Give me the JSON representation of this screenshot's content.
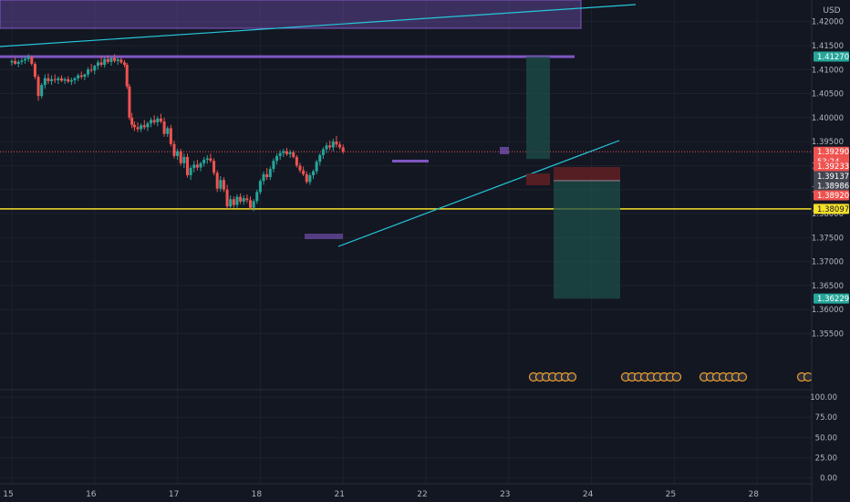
{
  "currency_label": "USD",
  "colors": {
    "background": "#131722",
    "grid": "#1e222d",
    "up": "#26a69a",
    "down": "#ef5350",
    "axis_text": "#b2b5be",
    "trendline": "#26c6da",
    "zone": "#7e57c2",
    "support": "#f5e02a",
    "target_zone": "#1d4d4a",
    "stop_zone": "#5c1f24"
  },
  "chart_data": {
    "type": "candlestick",
    "symbol_currency": "USD",
    "price_axis": {
      "min": 1.3435,
      "max": 1.4245,
      "ticks": [
        "1.42000",
        "1.41500",
        "1.41000",
        "1.40500",
        "1.40000",
        "1.39500",
        "1.39000",
        "1.38500",
        "1.38000",
        "1.37500",
        "1.37000",
        "1.36500",
        "1.36000",
        "1.35500"
      ]
    },
    "time_axis": {
      "labels": [
        {
          "label": "15",
          "x": 0
        },
        {
          "label": "16",
          "x": 1
        },
        {
          "label": "17",
          "x": 2
        },
        {
          "label": "18",
          "x": 3
        },
        {
          "label": "21",
          "x": 4
        },
        {
          "label": "22",
          "x": 5
        },
        {
          "label": "23",
          "x": 6
        },
        {
          "label": "24",
          "x": 7
        },
        {
          "label": "25",
          "x": 8
        },
        {
          "label": "28",
          "x": 9
        }
      ]
    },
    "oscillator_axis": {
      "min": -5,
      "max": 108,
      "ticks": [
        "100.00",
        "75.00",
        "50.00",
        "25.00",
        "0.00"
      ]
    },
    "price_markers": [
      {
        "label": "1.41270",
        "price": 1.4127,
        "color": "#26a69a",
        "text_color": "#ffffff"
      },
      {
        "label": "1.39290",
        "price": 1.3929,
        "color": "#ef5350",
        "text_color": "#ffffff",
        "sub": "53:24"
      },
      {
        "label": "1.39233",
        "price": 1.38985,
        "color": "#ef5350",
        "text_color": "#ffffff"
      },
      {
        "label": "1.39137",
        "price": 1.3878,
        "color": "#434651",
        "text_color": "#ffffff"
      },
      {
        "label": "1.38986",
        "price": 1.3858,
        "color": "#434651",
        "text_color": "#ffffff"
      },
      {
        "label": "1.38920",
        "price": 1.3838,
        "color": "#ef5350",
        "text_color": "#ffffff"
      },
      {
        "label": "1.38097",
        "price": 1.38097,
        "color": "#f5e02a",
        "text_color": "#131722"
      },
      {
        "label": "1.36229",
        "price": 1.36229,
        "color": "#26a69a",
        "text_color": "#ffffff"
      }
    ],
    "levels": {
      "resistance": 1.4127,
      "current": 1.3929,
      "support": 1.38097,
      "target": 1.36229
    },
    "candles": [
      [
        0.0,
        1.4115,
        1.4122,
        1.4108,
        1.4118
      ],
      [
        0.04,
        1.4118,
        1.4125,
        1.411,
        1.4112
      ],
      [
        0.08,
        1.4112,
        1.412,
        1.4105,
        1.4116
      ],
      [
        0.12,
        1.4116,
        1.4124,
        1.411,
        1.4119
      ],
      [
        0.16,
        1.4119,
        1.4128,
        1.4112,
        1.4122
      ],
      [
        0.2,
        1.4122,
        1.4132,
        1.4116,
        1.4126
      ],
      [
        0.24,
        1.4126,
        1.413,
        1.4108,
        1.4112
      ],
      [
        0.28,
        1.4112,
        1.4116,
        1.408,
        1.4085
      ],
      [
        0.32,
        1.4085,
        1.409,
        1.4035,
        1.4045
      ],
      [
        0.36,
        1.4045,
        1.4072,
        1.404,
        1.4068
      ],
      [
        0.4,
        1.4068,
        1.409,
        1.406,
        1.4082
      ],
      [
        0.44,
        1.4082,
        1.4092,
        1.407,
        1.4076
      ],
      [
        0.48,
        1.4076,
        1.4088,
        1.4068,
        1.408
      ],
      [
        0.52,
        1.408,
        1.409,
        1.4072,
        1.4078
      ],
      [
        0.56,
        1.4078,
        1.4086,
        1.407,
        1.4082
      ],
      [
        0.6,
        1.4082,
        1.4088,
        1.4074,
        1.4077
      ],
      [
        0.64,
        1.4077,
        1.4084,
        1.407,
        1.408
      ],
      [
        0.68,
        1.408,
        1.4086,
        1.4072,
        1.4075
      ],
      [
        0.72,
        1.4075,
        1.4083,
        1.4068,
        1.4078
      ],
      [
        0.76,
        1.4078,
        1.4085,
        1.407,
        1.4082
      ],
      [
        0.8,
        1.4082,
        1.4092,
        1.4076,
        1.4088
      ],
      [
        0.84,
        1.4088,
        1.4096,
        1.408,
        1.4085
      ],
      [
        0.88,
        1.4085,
        1.4092,
        1.4078,
        1.409
      ],
      [
        0.92,
        1.409,
        1.4105,
        1.4084,
        1.41
      ],
      [
        0.96,
        1.41,
        1.4112,
        1.4094,
        1.4098
      ],
      [
        1.0,
        1.4098,
        1.411,
        1.409,
        1.4108
      ],
      [
        1.04,
        1.4108,
        1.412,
        1.41,
        1.4115
      ],
      [
        1.08,
        1.4115,
        1.4128,
        1.4106,
        1.411
      ],
      [
        1.12,
        1.411,
        1.4126,
        1.4104,
        1.4122
      ],
      [
        1.16,
        1.4122,
        1.413,
        1.4112,
        1.4116
      ],
      [
        1.2,
        1.4116,
        1.4127,
        1.4108,
        1.4124
      ],
      [
        1.24,
        1.4124,
        1.4132,
        1.4114,
        1.4118
      ],
      [
        1.28,
        1.4118,
        1.4126,
        1.411,
        1.4121
      ],
      [
        1.32,
        1.4121,
        1.4125,
        1.4112,
        1.4115
      ],
      [
        1.36,
        1.4115,
        1.412,
        1.4105,
        1.411
      ],
      [
        1.39,
        1.411,
        1.4114,
        1.406,
        1.4065
      ],
      [
        1.42,
        1.4065,
        1.407,
        1.3995,
        1.4
      ],
      [
        1.45,
        1.4,
        1.401,
        1.3978,
        1.3985
      ],
      [
        1.48,
        1.3985,
        1.3992,
        1.3972,
        1.398
      ],
      [
        1.52,
        1.398,
        1.399,
        1.397,
        1.3976
      ],
      [
        1.56,
        1.3976,
        1.3988,
        1.397,
        1.3984
      ],
      [
        1.6,
        1.3984,
        1.3995,
        1.3975,
        1.398
      ],
      [
        1.64,
        1.398,
        1.3992,
        1.3972,
        1.3988
      ],
      [
        1.68,
        1.3988,
        1.4,
        1.398,
        1.3995
      ],
      [
        1.72,
        1.3995,
        1.4005,
        1.3985,
        1.399
      ],
      [
        1.76,
        1.399,
        1.4003,
        1.3982,
        1.3998
      ],
      [
        1.8,
        1.3998,
        1.4008,
        1.3988,
        1.3992
      ],
      [
        1.84,
        1.3992,
        1.4,
        1.396,
        1.3966
      ],
      [
        1.88,
        1.3966,
        1.3982,
        1.396,
        1.3978
      ],
      [
        1.92,
        1.3978,
        1.3985,
        1.394,
        1.3945
      ],
      [
        1.96,
        1.3945,
        1.3952,
        1.3915,
        1.392
      ],
      [
        2.0,
        1.392,
        1.3935,
        1.3912,
        1.393
      ],
      [
        2.04,
        1.393,
        1.3935,
        1.39,
        1.3905
      ],
      [
        2.08,
        1.3905,
        1.3925,
        1.3895,
        1.3918
      ],
      [
        2.12,
        1.3918,
        1.3925,
        1.3875,
        1.388
      ],
      [
        2.16,
        1.388,
        1.39,
        1.387,
        1.3895
      ],
      [
        2.2,
        1.3895,
        1.391,
        1.3886,
        1.3902
      ],
      [
        2.24,
        1.3902,
        1.3912,
        1.389,
        1.3896
      ],
      [
        2.28,
        1.3896,
        1.3908,
        1.3888,
        1.3905
      ],
      [
        2.32,
        1.3905,
        1.3918,
        1.3898,
        1.3912
      ],
      [
        2.36,
        1.3912,
        1.3922,
        1.3904,
        1.3915
      ],
      [
        2.4,
        1.3915,
        1.3925,
        1.3906,
        1.391
      ],
      [
        2.44,
        1.391,
        1.3915,
        1.388,
        1.3885
      ],
      [
        2.48,
        1.3885,
        1.389,
        1.3845,
        1.3852
      ],
      [
        2.52,
        1.3852,
        1.3878,
        1.3846,
        1.387
      ],
      [
        2.56,
        1.387,
        1.3876,
        1.3845,
        1.385
      ],
      [
        2.6,
        1.385,
        1.386,
        1.381,
        1.3815
      ],
      [
        2.64,
        1.3815,
        1.3838,
        1.381,
        1.383
      ],
      [
        2.68,
        1.383,
        1.3836,
        1.3812,
        1.3818
      ],
      [
        2.72,
        1.3818,
        1.384,
        1.3812,
        1.3835
      ],
      [
        2.76,
        1.3835,
        1.3842,
        1.382,
        1.3825
      ],
      [
        2.8,
        1.3825,
        1.3838,
        1.3818,
        1.3832
      ],
      [
        2.84,
        1.3832,
        1.384,
        1.3822,
        1.3828
      ],
      [
        2.88,
        1.3828,
        1.3836,
        1.3808,
        1.3812
      ],
      [
        2.92,
        1.3812,
        1.383,
        1.3805,
        1.3826
      ],
      [
        2.96,
        1.3826,
        1.385,
        1.382,
        1.3845
      ],
      [
        3.0,
        1.3845,
        1.3872,
        1.384,
        1.3868
      ],
      [
        3.04,
        1.3868,
        1.3888,
        1.386,
        1.3882
      ],
      [
        3.08,
        1.3882,
        1.3895,
        1.387,
        1.3876
      ],
      [
        3.12,
        1.3876,
        1.3898,
        1.387,
        1.3893
      ],
      [
        3.16,
        1.3893,
        1.3915,
        1.3886,
        1.391
      ],
      [
        3.2,
        1.391,
        1.3925,
        1.3902,
        1.392
      ],
      [
        3.24,
        1.392,
        1.3932,
        1.3912,
        1.3926
      ],
      [
        3.28,
        1.3926,
        1.3935,
        1.3918,
        1.393
      ],
      [
        3.32,
        1.393,
        1.3937,
        1.392,
        1.3924
      ],
      [
        3.36,
        1.3924,
        1.3933,
        1.3916,
        1.3928
      ],
      [
        3.4,
        1.3928,
        1.3932,
        1.3915,
        1.3918
      ],
      [
        3.44,
        1.3918,
        1.3922,
        1.3896,
        1.39
      ],
      [
        3.48,
        1.39,
        1.3906,
        1.3885,
        1.389
      ],
      [
        3.52,
        1.389,
        1.3898,
        1.3878,
        1.3882
      ],
      [
        3.56,
        1.3882,
        1.3888,
        1.3862,
        1.3866
      ],
      [
        3.6,
        1.3866,
        1.3885,
        1.386,
        1.388
      ],
      [
        3.64,
        1.388,
        1.3892,
        1.3872,
        1.3888
      ],
      [
        3.68,
        1.3888,
        1.3912,
        1.3882,
        1.3908
      ],
      [
        3.72,
        1.3908,
        1.3926,
        1.39,
        1.3922
      ],
      [
        3.76,
        1.3922,
        1.3938,
        1.3914,
        1.3934
      ],
      [
        3.8,
        1.3934,
        1.3948,
        1.3926,
        1.3942
      ],
      [
        3.84,
        1.3942,
        1.3952,
        1.3932,
        1.3938
      ],
      [
        3.88,
        1.3938,
        1.3956,
        1.393,
        1.395
      ],
      [
        3.92,
        1.395,
        1.3962,
        1.3938,
        1.3944
      ],
      [
        3.96,
        1.3944,
        1.395,
        1.3934,
        1.3938
      ],
      [
        4.0,
        1.3938,
        1.3944,
        1.3925,
        1.3929
      ]
    ]
  }
}
